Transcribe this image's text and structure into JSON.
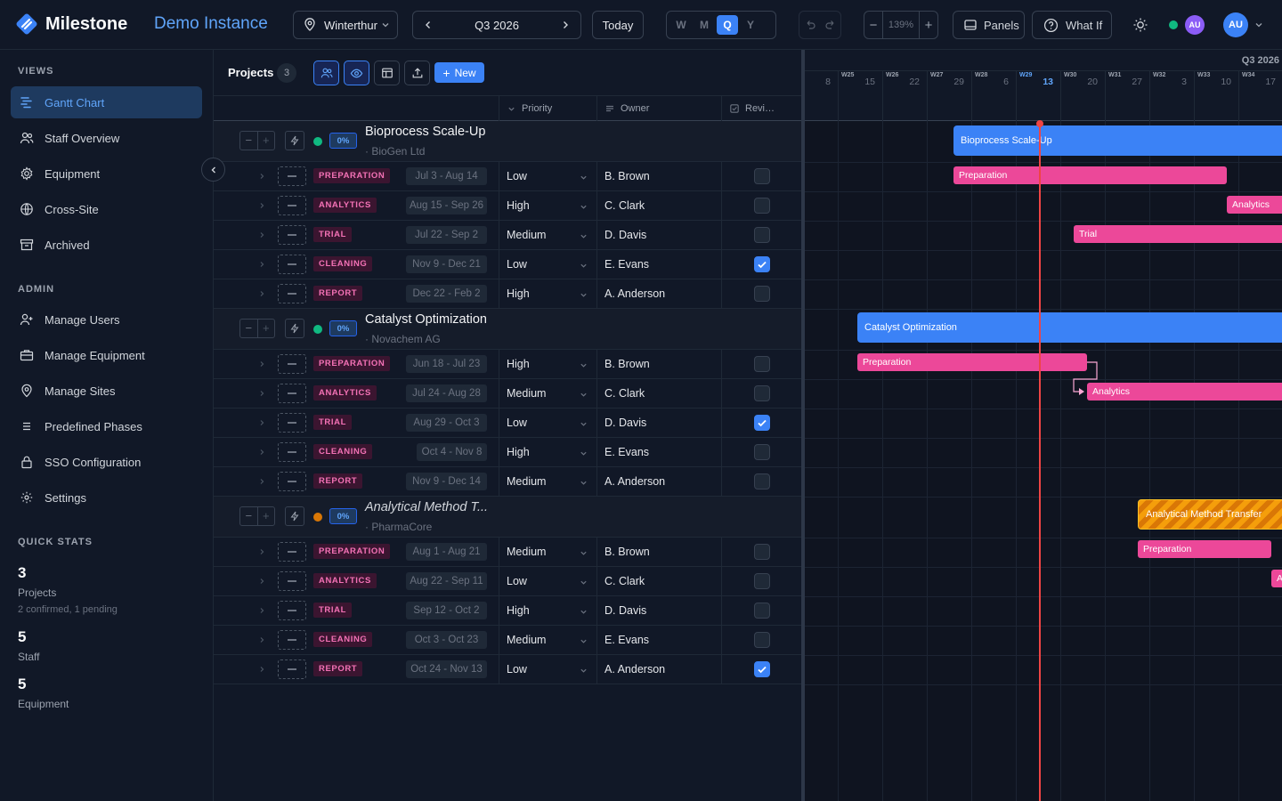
{
  "app": {
    "brand": "Milestone",
    "instance": "Demo Instance"
  },
  "toolbar": {
    "site": "Winterthur",
    "period": "Q3 2026",
    "today": "Today",
    "scale": [
      "W",
      "M",
      "Q",
      "Y"
    ],
    "scale_selected": "Q",
    "zoom": "139%",
    "panels": "Panels",
    "whatif": "What If",
    "avatar_small": "AU",
    "avatar": "AU"
  },
  "sidebar": {
    "views_heading": "VIEWS",
    "views": [
      "Gantt Chart",
      "Staff Overview",
      "Equipment",
      "Cross-Site",
      "Archived"
    ],
    "admin_heading": "ADMIN",
    "admin": [
      "Manage Users",
      "Manage Equipment",
      "Manage Sites",
      "Predefined Phases",
      "SSO Configuration",
      "Settings"
    ],
    "stats_heading": "QUICK STATS",
    "stats": [
      {
        "value": "3",
        "label": "Projects",
        "sub": "2 confirmed, 1 pending"
      },
      {
        "value": "5",
        "label": "Staff",
        "sub": ""
      },
      {
        "value": "5",
        "label": "Equipment",
        "sub": ""
      }
    ]
  },
  "grid": {
    "title": "Projects",
    "count": "3",
    "new_label": "New",
    "columns": {
      "priority": "Priority",
      "owner": "Owner",
      "review": "Revi…"
    },
    "projects": [
      {
        "name": "Bioprocess Scale-Up",
        "client": "· BioGen Ltd",
        "progress": "0%",
        "status_color": "#10b981",
        "italic": false,
        "phases": [
          {
            "tag": "PREPARATION",
            "dates": "Jul 3 - Aug 14",
            "priority": "Low",
            "owner": "B. Brown",
            "review": false
          },
          {
            "tag": "ANALYTICS",
            "dates": "Aug 15 - Sep 26",
            "priority": "High",
            "owner": "C. Clark",
            "review": false
          },
          {
            "tag": "TRIAL",
            "dates": "Jul 22 - Sep 2",
            "priority": "Medium",
            "owner": "D. Davis",
            "review": false
          },
          {
            "tag": "CLEANING",
            "dates": "Nov 9 - Dec 21",
            "priority": "Low",
            "owner": "E. Evans",
            "review": true
          },
          {
            "tag": "REPORT",
            "dates": "Dec 22 - Feb 2",
            "priority": "High",
            "owner": "A. Anderson",
            "review": false
          }
        ]
      },
      {
        "name": "Catalyst Optimization",
        "client": "· Novachem AG",
        "progress": "0%",
        "status_color": "#10b981",
        "italic": false,
        "phases": [
          {
            "tag": "PREPARATION",
            "dates": "Jun 18 - Jul 23",
            "priority": "High",
            "owner": "B. Brown",
            "review": false
          },
          {
            "tag": "ANALYTICS",
            "dates": "Jul 24 - Aug 28",
            "priority": "Medium",
            "owner": "C. Clark",
            "review": false
          },
          {
            "tag": "TRIAL",
            "dates": "Aug 29 - Oct 3",
            "priority": "Low",
            "owner": "D. Davis",
            "review": true
          },
          {
            "tag": "CLEANING",
            "dates": "Oct 4 - Nov 8",
            "priority": "High",
            "owner": "E. Evans",
            "review": false
          },
          {
            "tag": "REPORT",
            "dates": "Nov 9 - Dec 14",
            "priority": "Medium",
            "owner": "A. Anderson",
            "review": false
          }
        ]
      },
      {
        "name": "Analytical Method T...",
        "client": "· PharmaCore",
        "progress": "0%",
        "status_color": "#d97706",
        "italic": true,
        "phases": [
          {
            "tag": "PREPARATION",
            "dates": "Aug 1 - Aug 21",
            "priority": "Medium",
            "owner": "B. Brown",
            "review": false
          },
          {
            "tag": "ANALYTICS",
            "dates": "Aug 22 - Sep 11",
            "priority": "Low",
            "owner": "C. Clark",
            "review": false
          },
          {
            "tag": "TRIAL",
            "dates": "Sep 12 - Oct 2",
            "priority": "High",
            "owner": "D. Davis",
            "review": false
          },
          {
            "tag": "CLEANING",
            "dates": "Oct 3 - Oct 23",
            "priority": "Medium",
            "owner": "E. Evans",
            "review": false
          },
          {
            "tag": "REPORT",
            "dates": "Oct 24 - Nov 13",
            "priority": "Low",
            "owner": "A. Anderson",
            "review": true
          }
        ]
      }
    ]
  },
  "timeline": {
    "quarter_label": "Q3 2026",
    "weeks": [
      {
        "week": "4",
        "day": "8"
      },
      {
        "week": "W25",
        "day": "15"
      },
      {
        "week": "W26",
        "day": "22"
      },
      {
        "week": "W27",
        "day": "29"
      },
      {
        "week": "W28",
        "day": "6"
      },
      {
        "week": "W29",
        "day": "13"
      },
      {
        "week": "W30",
        "day": "20"
      },
      {
        "week": "W31",
        "day": "27"
      },
      {
        "week": "W32",
        "day": "3"
      },
      {
        "week": "W33",
        "day": "10"
      },
      {
        "week": "W34",
        "day": "17"
      }
    ],
    "current_week": "W29",
    "bars": {
      "p0": "Bioprocess Scale-Up",
      "p0_prep": "Preparation",
      "p0_ana": "Analytics",
      "p0_trial": "Trial",
      "p1": "Catalyst Optimization",
      "p1_prep": "Preparation",
      "p1_ana": "Analytics",
      "p2": "Analytical Method Transfer",
      "p2_prep": "Preparation",
      "p2_ana": "A"
    },
    "colors": {
      "project": "#3b82f6",
      "phase": "#ec4899",
      "pending": "#f59e0b",
      "today": "#ef4444"
    }
  }
}
